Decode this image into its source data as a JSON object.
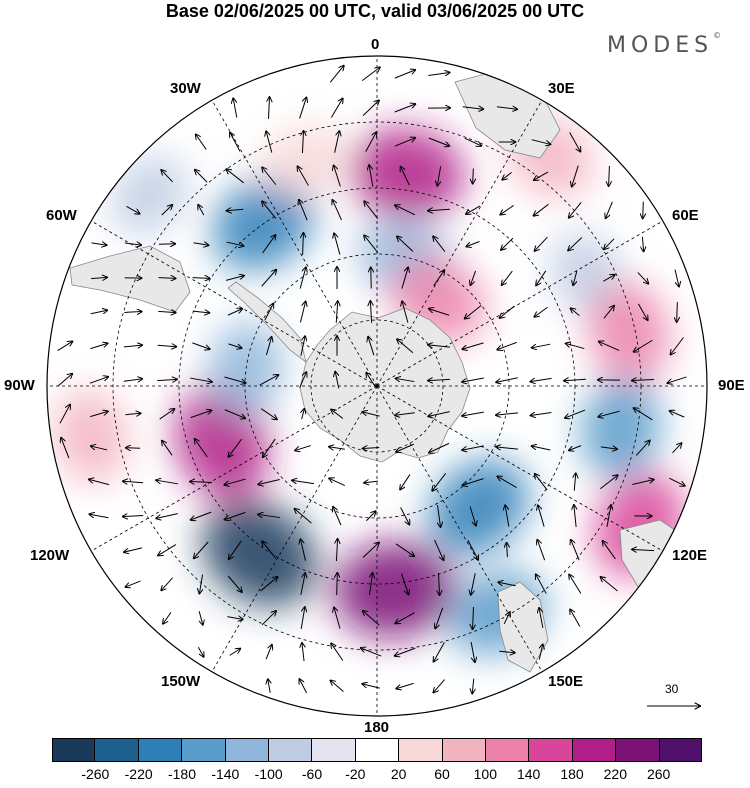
{
  "title": "Base 02/06/2025 00 UTC, valid 03/06/2025 00 UTC",
  "brand": {
    "name": "MODES",
    "mark": "©"
  },
  "longitude_labels": {
    "lon_0": "0",
    "lon_30e": "30E",
    "lon_60e": "60E",
    "lon_90e": "90E",
    "lon_120e": "120E",
    "lon_150e": "150E",
    "lon_180": "180",
    "lon_150w": "150W",
    "lon_120w": "120W",
    "lon_90w": "90W",
    "lon_60w": "60W",
    "lon_30w": "30W"
  },
  "reference_vector": {
    "label": "30"
  },
  "colorbar": {
    "colors": [
      "#1a3a5c",
      "#1d5f8f",
      "#2f7fb8",
      "#5a9cca",
      "#8fb6da",
      "#bfcce4",
      "#e4e4f0",
      "#ffffff",
      "#f9d8d8",
      "#f3b4c2",
      "#ec82aa",
      "#d9459a",
      "#b01f87",
      "#7a1276",
      "#4f0f6b"
    ],
    "tick_labels": [
      "-260",
      "-220",
      "-180",
      "-140",
      "-100",
      "-60",
      "-20",
      "20",
      "60",
      "100",
      "140",
      "180",
      "220",
      "260"
    ]
  },
  "anomaly_features": [
    {
      "lon_deg": 8,
      "r": 0.65,
      "value": 220,
      "color": "#b01f87"
    },
    {
      "lon_deg": 37,
      "r": 0.87,
      "value": 100,
      "color": "#f3b4c2"
    },
    {
      "lon_deg": 12,
      "r": 0.4,
      "value": -100,
      "color": "#8fb6da"
    },
    {
      "lon_deg": 35,
      "r": 0.32,
      "value": 140,
      "color": "#ec82aa"
    },
    {
      "lon_deg": -35,
      "r": 0.6,
      "value": -180,
      "color": "#2f7fb8"
    },
    {
      "lon_deg": 62,
      "r": 0.72,
      "value": -60,
      "color": "#bfcce4"
    },
    {
      "lon_deg": 78,
      "r": 0.78,
      "value": 140,
      "color": "#ec82aa"
    },
    {
      "lon_deg": 100,
      "r": 0.75,
      "value": -140,
      "color": "#5a9cca"
    },
    {
      "lon_deg": 118,
      "r": 0.9,
      "value": 180,
      "color": "#d9459a"
    },
    {
      "lon_deg": 140,
      "r": 0.48,
      "value": -180,
      "color": "#2f7fb8"
    },
    {
      "lon_deg": 152,
      "r": 0.78,
      "value": -140,
      "color": "#5a9cca"
    },
    {
      "lon_deg": 175,
      "r": 0.62,
      "value": 260,
      "color": "#7a1276"
    },
    {
      "lon_deg": -145,
      "r": 0.62,
      "value": -260,
      "color": "#1a3a5c"
    },
    {
      "lon_deg": -110,
      "r": 0.5,
      "value": 220,
      "color": "#b01f87"
    },
    {
      "lon_deg": -100,
      "r": 0.88,
      "value": 100,
      "color": "#f3b4c2"
    },
    {
      "lon_deg": -82,
      "r": 0.4,
      "value": -100,
      "color": "#8fb6da"
    },
    {
      "lon_deg": -50,
      "r": 0.9,
      "value": -60,
      "color": "#bfcce4"
    },
    {
      "lon_deg": -18,
      "r": 0.72,
      "value": 60,
      "color": "#f9d8d8"
    }
  ]
}
